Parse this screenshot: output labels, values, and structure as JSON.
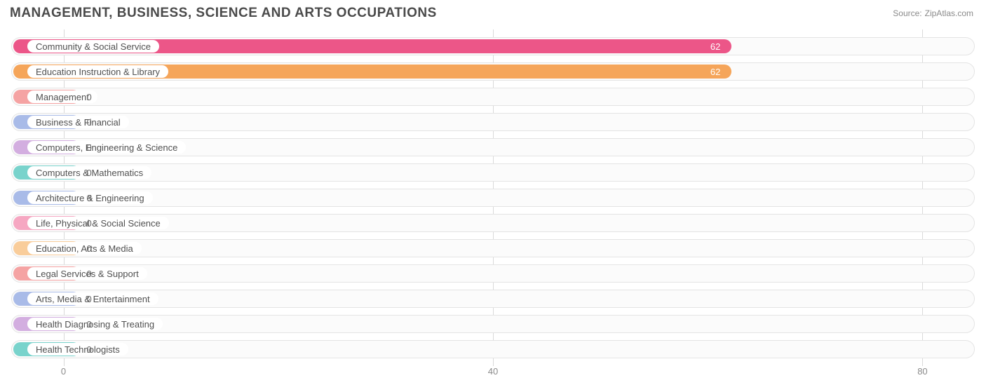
{
  "title": "MANAGEMENT, BUSINESS, SCIENCE AND ARTS OCCUPATIONS",
  "source_label": "Source:",
  "source_value": "ZipAtlas.com",
  "chart": {
    "type": "bar-horizontal",
    "xmin": -5,
    "xmax": 85,
    "xticks": [
      0,
      40,
      80
    ],
    "grid_color": "#d9d9d9",
    "track_border": "#e4e4e4",
    "track_bg": "#fbfbfb",
    "label_fontsize": 13,
    "label_color": "#505050",
    "value_color": "#666666",
    "value_inside_color": "#ffffff",
    "series": [
      {
        "label": "Community & Social Service",
        "value": 62,
        "color": "#ec5688"
      },
      {
        "label": "Education Instruction & Library",
        "value": 62,
        "color": "#f5a55a"
      },
      {
        "label": "Management",
        "value": 0,
        "color": "#f5a3a3"
      },
      {
        "label": "Business & Financial",
        "value": 0,
        "color": "#a9bbe8"
      },
      {
        "label": "Computers, Engineering & Science",
        "value": 0,
        "color": "#d3aee0"
      },
      {
        "label": "Computers & Mathematics",
        "value": 0,
        "color": "#79d3cc"
      },
      {
        "label": "Architecture & Engineering",
        "value": 0,
        "color": "#a9bbe8"
      },
      {
        "label": "Life, Physical & Social Science",
        "value": 0,
        "color": "#f6a7c2"
      },
      {
        "label": "Education, Arts & Media",
        "value": 0,
        "color": "#f9cd9b"
      },
      {
        "label": "Legal Services & Support",
        "value": 0,
        "color": "#f5a3a3"
      },
      {
        "label": "Arts, Media & Entertainment",
        "value": 0,
        "color": "#a9bbe8"
      },
      {
        "label": "Health Diagnosing & Treating",
        "value": 0,
        "color": "#d3aee0"
      },
      {
        "label": "Health Technologists",
        "value": 0,
        "color": "#79d3cc"
      }
    ]
  }
}
